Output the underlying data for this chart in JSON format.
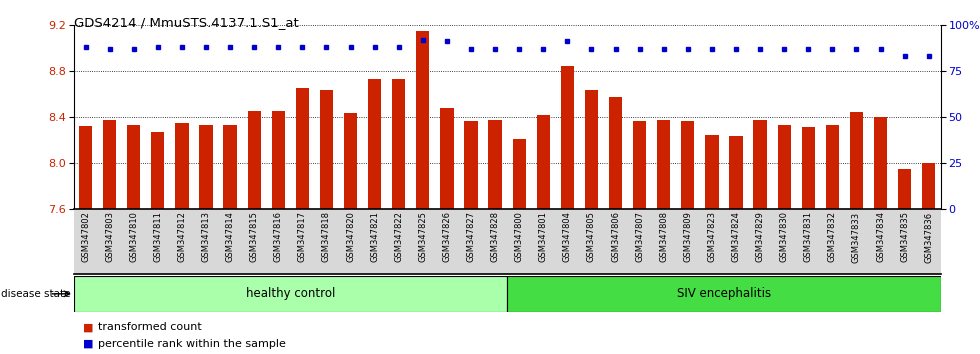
{
  "title": "GDS4214 / MmuSTS.4137.1.S1_at",
  "samples": [
    "GSM347802",
    "GSM347803",
    "GSM347810",
    "GSM347811",
    "GSM347812",
    "GSM347813",
    "GSM347814",
    "GSM347815",
    "GSM347816",
    "GSM347817",
    "GSM347818",
    "GSM347820",
    "GSM347821",
    "GSM347822",
    "GSM347825",
    "GSM347826",
    "GSM347827",
    "GSM347828",
    "GSM347800",
    "GSM347801",
    "GSM347804",
    "GSM347805",
    "GSM347806",
    "GSM347807",
    "GSM347808",
    "GSM347809",
    "GSM347823",
    "GSM347824",
    "GSM347829",
    "GSM347830",
    "GSM347831",
    "GSM347832",
    "GSM347833",
    "GSM347834",
    "GSM347835",
    "GSM347836"
  ],
  "bar_values": [
    8.32,
    8.37,
    8.33,
    8.27,
    8.35,
    8.33,
    8.33,
    8.45,
    8.45,
    8.65,
    8.63,
    8.43,
    8.73,
    8.73,
    9.15,
    8.48,
    8.36,
    8.37,
    8.21,
    8.42,
    8.84,
    8.63,
    8.57,
    8.36,
    8.37,
    8.36,
    8.24,
    8.23,
    8.37,
    8.33,
    8.31,
    8.33,
    8.44,
    8.4,
    7.95,
    8.0
  ],
  "percentile_values": [
    88,
    87,
    87,
    88,
    88,
    88,
    88,
    88,
    88,
    88,
    88,
    88,
    88,
    88,
    92,
    91,
    87,
    87,
    87,
    87,
    91,
    87,
    87,
    87,
    87,
    87,
    87,
    87,
    87,
    87,
    87,
    87,
    87,
    87,
    83,
    83
  ],
  "n_healthy": 18,
  "n_siv": 18,
  "ylim_left": [
    7.6,
    9.2
  ],
  "ylim_right": [
    0,
    100
  ],
  "yticks_left": [
    7.6,
    8.0,
    8.4,
    8.8,
    9.2
  ],
  "yticks_right": [
    0,
    25,
    50,
    75,
    100
  ],
  "ytick_labels_right": [
    "0",
    "25",
    "50",
    "75",
    "100%"
  ],
  "bar_color": "#cc2200",
  "dot_color": "#0000cc",
  "healthy_color": "#aaffaa",
  "siv_color": "#44dd44",
  "healthy_label": "healthy control",
  "siv_label": "SIV encephalitis",
  "disease_state_label": "disease state",
  "legend_bar_label": "transformed count",
  "legend_dot_label": "percentile rank within the sample",
  "tick_bg_color": "#d8d8d8",
  "grid_color": "#000000"
}
